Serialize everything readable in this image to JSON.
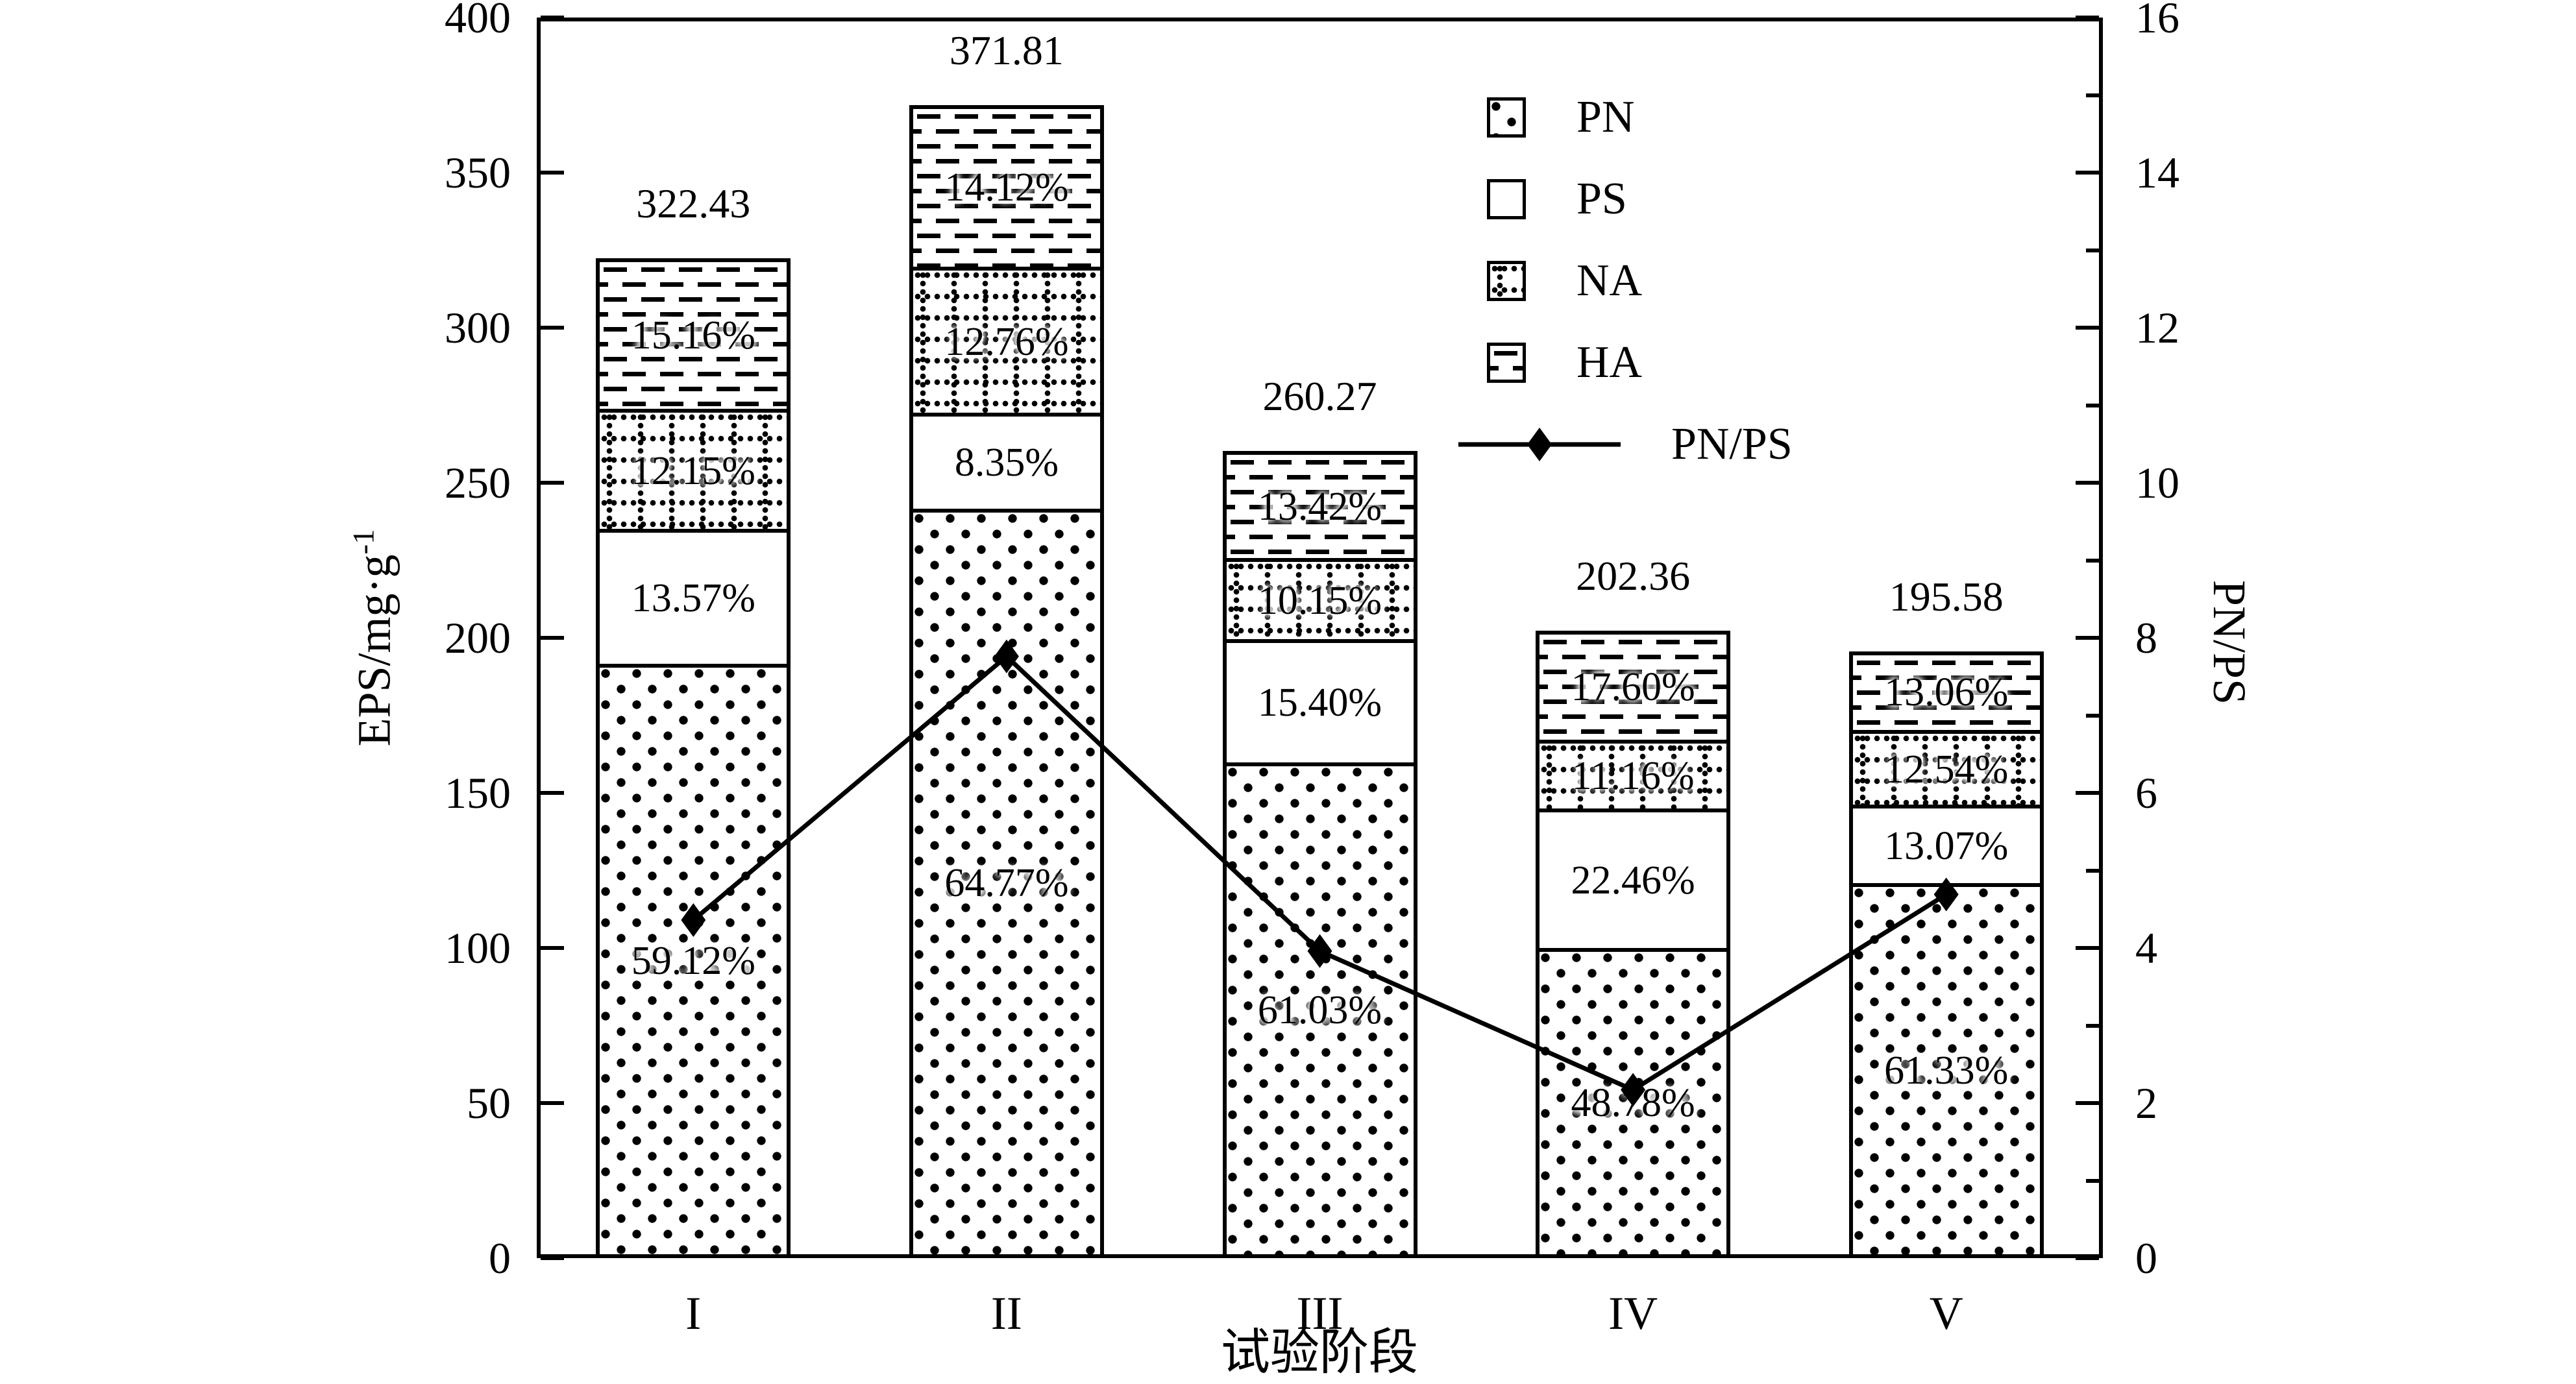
{
  "colors": {
    "ink": "#000000",
    "background": "#ffffff"
  },
  "chart_data": {
    "type": "bar",
    "subtype": "stacked-bars-with-line-overlay",
    "categories": [
      "I",
      "II",
      "III",
      "IV",
      "V"
    ],
    "totals": [
      322.43,
      371.81,
      260.27,
      202.36,
      195.58
    ],
    "series": [
      {
        "name": "PN",
        "pattern": "dots",
        "pct": [
          59.12,
          64.77,
          61.03,
          48.78,
          61.33
        ]
      },
      {
        "name": "PS",
        "pattern": "plain",
        "pct": [
          13.57,
          8.35,
          15.4,
          22.46,
          13.07
        ]
      },
      {
        "name": "NA",
        "pattern": "grid",
        "pct": [
          12.15,
          12.76,
          10.15,
          11.16,
          12.54
        ]
      },
      {
        "name": "HA",
        "pattern": "dash",
        "pct": [
          15.16,
          14.12,
          13.42,
          17.6,
          13.06
        ]
      }
    ],
    "line_series": {
      "name": "PN/PS",
      "marker": "diamond",
      "values": [
        4.36,
        7.76,
        3.96,
        2.17,
        4.69
      ]
    },
    "left_axis": {
      "label_main": "EPS/mg·g",
      "label_sup": "-1",
      "min": 0,
      "max": 400,
      "major_step": 50
    },
    "right_axis": {
      "label": "PN/PS",
      "min": 0,
      "max": 16,
      "major_step": 2,
      "minor_step": 1
    },
    "x_axis": {
      "label": "试验阶段"
    },
    "legend_entries": [
      "PN",
      "PS",
      "NA",
      "HA",
      "PN/PS"
    ],
    "grid": "off",
    "legend_position": "upper-right-inside"
  }
}
